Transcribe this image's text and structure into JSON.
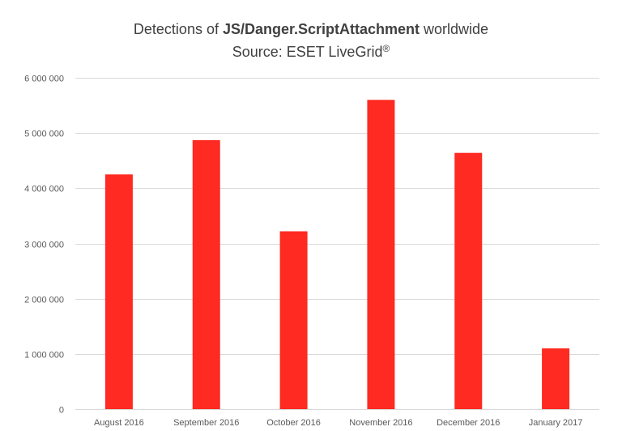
{
  "chart_data": {
    "type": "bar",
    "title": {
      "prefix": "Detections of ",
      "bold": "JS/Danger.ScriptAttachment",
      "suffix": " worldwide"
    },
    "subtitle": {
      "text": "Source: ESET LiveGrid",
      "mark": "®"
    },
    "categories": [
      "August 2016",
      "September 2016",
      "October 2016",
      "November 2016",
      "December 2016",
      "January 2017"
    ],
    "values": [
      4250000,
      4870000,
      3220000,
      5600000,
      4640000,
      1100000
    ],
    "yticks": [
      "0",
      "1 000 000",
      "2 000 000",
      "3 000 000",
      "4 000 000",
      "5 000 000",
      "6 000 000"
    ],
    "ylim": [
      0,
      6000000
    ],
    "xlabel": "",
    "ylabel": "",
    "grid": true,
    "legend": "none",
    "bar_color": "#ff2a21",
    "grid_color": "#d9d9d9"
  }
}
